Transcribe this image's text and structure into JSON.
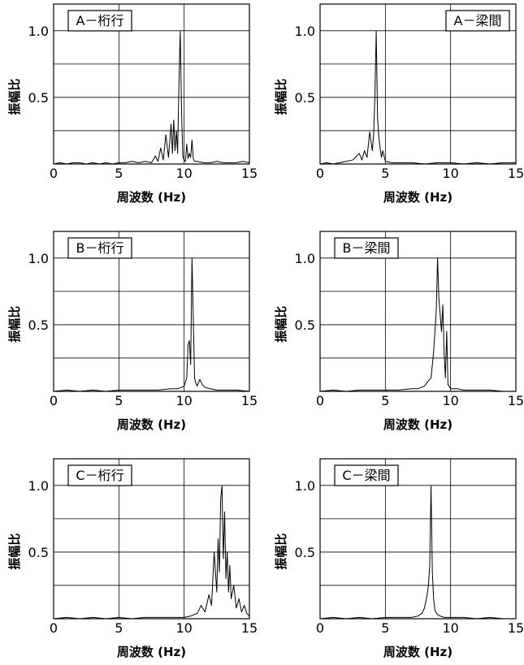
{
  "chart_data": [
    {
      "type": "line",
      "title": "A－桁行",
      "title_position": "top-left",
      "xlabel": "周波数 (Hz)",
      "ylabel": "振幅比",
      "xlim": [
        0,
        15
      ],
      "ylim": [
        0,
        1.2
      ],
      "xticks": [
        "0",
        "5",
        "10",
        "15"
      ],
      "yticks": [
        "0.5",
        "1.0"
      ],
      "grid": true,
      "x": [
        0,
        0.5,
        1.0,
        1.5,
        2.0,
        2.5,
        3.0,
        3.5,
        4.0,
        4.5,
        5.0,
        5.5,
        6.0,
        6.5,
        7.0,
        7.5,
        7.8,
        8.0,
        8.2,
        8.4,
        8.6,
        8.8,
        9.0,
        9.1,
        9.2,
        9.3,
        9.4,
        9.5,
        9.6,
        9.7,
        9.8,
        9.9,
        10.0,
        10.1,
        10.2,
        10.3,
        10.4,
        10.5,
        10.6,
        10.7,
        10.8,
        11.0,
        11.5,
        12.0,
        12.5,
        13.0,
        13.5,
        14.0,
        14.5,
        15.0
      ],
      "y": [
        0,
        0.01,
        0.0,
        0.01,
        0.01,
        0.0,
        0.01,
        0.0,
        0.01,
        0.0,
        0.01,
        0.01,
        0.02,
        0.01,
        0.02,
        0.01,
        0.06,
        0.02,
        0.12,
        0.03,
        0.22,
        0.05,
        0.3,
        0.08,
        0.33,
        0.1,
        0.25,
        0.08,
        0.6,
        1.0,
        0.4,
        0.06,
        0.03,
        0.02,
        0.15,
        0.04,
        0.08,
        0.05,
        0.18,
        0.04,
        0.02,
        0.02,
        0.01,
        0.01,
        0.02,
        0.01,
        0.01,
        0.01,
        0.02,
        0.01
      ]
    },
    {
      "type": "line",
      "title": "A－梁間",
      "title_position": "top-right",
      "xlabel": "周波数 (Hz)",
      "ylabel": "振幅比",
      "xlim": [
        0,
        15
      ],
      "ylim": [
        0,
        1.2
      ],
      "xticks": [
        "0",
        "5",
        "10",
        "15"
      ],
      "yticks": [
        "0.5",
        "1.0"
      ],
      "grid": true,
      "x": [
        0,
        0.5,
        1.0,
        1.5,
        2.0,
        2.5,
        3.0,
        3.2,
        3.4,
        3.6,
        3.8,
        4.0,
        4.1,
        4.2,
        4.3,
        4.4,
        4.5,
        4.6,
        4.7,
        4.8,
        5.0,
        5.5,
        6.0,
        7.0,
        8.0,
        9.0,
        10.0,
        11.0,
        12.0,
        13.0,
        14.0,
        15.0
      ],
      "y": [
        0,
        0.01,
        0.0,
        0.01,
        0.02,
        0.03,
        0.08,
        0.03,
        0.1,
        0.05,
        0.24,
        0.1,
        0.22,
        0.5,
        1.0,
        0.35,
        0.2,
        0.12,
        0.05,
        0.1,
        0.02,
        0.01,
        0.01,
        0.01,
        0.0,
        0.01,
        0.01,
        0.0,
        0.01,
        0.0,
        0.01,
        0.01
      ]
    },
    {
      "type": "line",
      "title": "B－桁行",
      "title_position": "top-left",
      "xlabel": "周波数 (Hz)",
      "ylabel": "振幅比",
      "xlim": [
        0,
        15
      ],
      "ylim": [
        0,
        1.2
      ],
      "xticks": [
        "0",
        "5",
        "10",
        "15"
      ],
      "yticks": [
        "0.5",
        "1.0"
      ],
      "grid": true,
      "x": [
        0,
        1.0,
        2.0,
        3.0,
        4.0,
        5.0,
        6.0,
        7.0,
        8.0,
        9.0,
        9.5,
        9.8,
        10.0,
        10.2,
        10.3,
        10.4,
        10.5,
        10.6,
        10.7,
        10.8,
        10.9,
        11.0,
        11.2,
        11.4,
        11.6,
        12.0,
        12.5,
        13.0,
        14.0,
        15.0
      ],
      "y": [
        0,
        0.01,
        0.0,
        0.01,
        0.0,
        0.01,
        0.01,
        0.01,
        0.01,
        0.02,
        0.02,
        0.03,
        0.04,
        0.1,
        0.35,
        0.38,
        0.2,
        1.0,
        0.55,
        0.1,
        0.06,
        0.04,
        0.09,
        0.05,
        0.03,
        0.02,
        0.01,
        0.01,
        0.01,
        0.0
      ]
    },
    {
      "type": "line",
      "title": "B－梁間",
      "title_position": "top-left",
      "xlabel": "周波数 (Hz)",
      "ylabel": "振幅比",
      "xlim": [
        0,
        15
      ],
      "ylim": [
        0,
        1.2
      ],
      "xticks": [
        "0",
        "5",
        "10",
        "15"
      ],
      "yticks": [
        "0.5",
        "1.0"
      ],
      "grid": true,
      "x": [
        0,
        1.0,
        2.0,
        3.0,
        4.0,
        5.0,
        6.0,
        7.0,
        7.5,
        8.0,
        8.3,
        8.5,
        8.7,
        8.9,
        9.0,
        9.1,
        9.3,
        9.4,
        9.5,
        9.6,
        9.7,
        9.8,
        10.0,
        10.5,
        11.0,
        12.0,
        13.0,
        14.0,
        15.0
      ],
      "y": [
        0,
        0.01,
        0.0,
        0.01,
        0.01,
        0.01,
        0.01,
        0.02,
        0.02,
        0.04,
        0.08,
        0.1,
        0.3,
        0.6,
        1.0,
        0.7,
        0.45,
        0.65,
        0.3,
        0.1,
        0.45,
        0.05,
        0.02,
        0.02,
        0.01,
        0.01,
        0.01,
        0.0,
        0.0
      ]
    },
    {
      "type": "line",
      "title": "C－桁行",
      "title_position": "top-left",
      "xlabel": "周波数 (Hz)",
      "ylabel": "振幅比",
      "xlim": [
        0,
        15
      ],
      "ylim": [
        0,
        1.2
      ],
      "xticks": [
        "0",
        "5",
        "10",
        "15"
      ],
      "yticks": [
        "0.5",
        "1.0"
      ],
      "grid": true,
      "x": [
        0,
        1.0,
        2.0,
        3.0,
        4.0,
        5.0,
        6.0,
        7.0,
        8.0,
        9.0,
        10.0,
        10.5,
        11.0,
        11.3,
        11.6,
        11.9,
        12.1,
        12.3,
        12.5,
        12.6,
        12.7,
        12.8,
        12.9,
        13.0,
        13.1,
        13.2,
        13.3,
        13.4,
        13.5,
        13.6,
        13.8,
        14.0,
        14.2,
        14.4,
        14.6,
        14.8,
        15.0
      ],
      "y": [
        0,
        0.01,
        0.0,
        0.01,
        0.0,
        0.01,
        0.0,
        0.01,
        0.01,
        0.01,
        0.01,
        0.02,
        0.04,
        0.1,
        0.05,
        0.18,
        0.1,
        0.5,
        0.2,
        0.6,
        0.35,
        0.9,
        1.0,
        0.45,
        0.8,
        0.3,
        0.5,
        0.2,
        0.4,
        0.15,
        0.25,
        0.08,
        0.15,
        0.05,
        0.1,
        0.04,
        0.02
      ]
    },
    {
      "type": "line",
      "title": "C－梁間",
      "title_position": "top-left",
      "xlabel": "周波数 (Hz)",
      "ylabel": "振幅比",
      "xlim": [
        0,
        15
      ],
      "ylim": [
        0,
        1.2
      ],
      "xticks": [
        "0",
        "5",
        "10",
        "15"
      ],
      "yticks": [
        "0.5",
        "1.0"
      ],
      "grid": true,
      "x": [
        0,
        1.0,
        2.0,
        3.0,
        4.0,
        5.0,
        6.0,
        7.0,
        7.5,
        7.8,
        8.0,
        8.2,
        8.3,
        8.4,
        8.5,
        8.6,
        8.7,
        8.8,
        9.0,
        9.2,
        9.5,
        10.0,
        11.0,
        12.0,
        13.0,
        14.0,
        15.0
      ],
      "y": [
        0,
        0.01,
        0.0,
        0.01,
        0.0,
        0.01,
        0.01,
        0.01,
        0.02,
        0.04,
        0.08,
        0.18,
        0.25,
        0.4,
        1.0,
        0.35,
        0.15,
        0.06,
        0.03,
        0.02,
        0.01,
        0.01,
        0.01,
        0.0,
        0.01,
        0.0,
        0.0
      ]
    }
  ]
}
